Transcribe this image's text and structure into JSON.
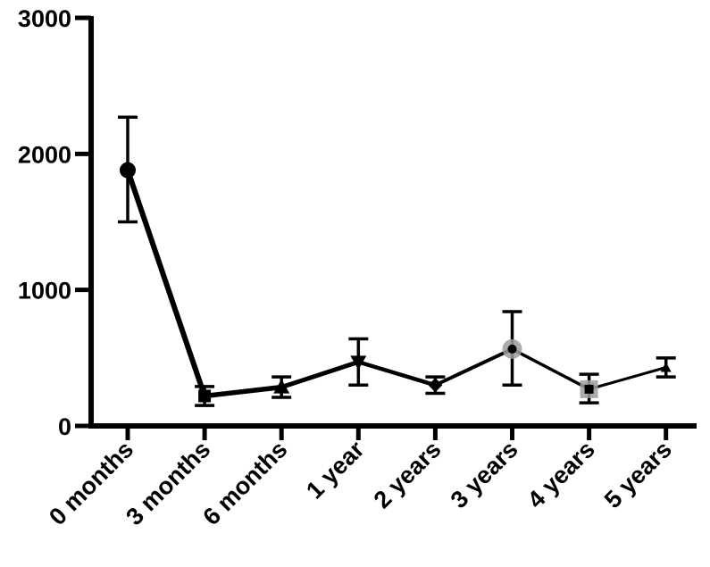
{
  "chart_data": {
    "type": "line",
    "categories": [
      "0 months",
      "3 months",
      "6 months",
      "1 year",
      "2 years",
      "3 years",
      "4 years",
      "5 years"
    ],
    "series": [
      {
        "values": [
          1880,
          220,
          285,
          470,
          300,
          565,
          270,
          430
        ],
        "error_low": [
          1500,
          150,
          210,
          300,
          240,
          300,
          170,
          360
        ],
        "error_high": [
          2270,
          290,
          360,
          640,
          360,
          840,
          380,
          500
        ],
        "markers": [
          "circle",
          "square",
          "triangle-up",
          "triangle-down",
          "diamond",
          "circle",
          "square",
          "triangle-up"
        ]
      }
    ],
    "yticks": [
      "0",
      "1000",
      "2000",
      "3000"
    ],
    "ylim": [
      0,
      3000
    ],
    "title": "",
    "xlabel": "",
    "ylabel": "",
    "grid": false,
    "colors": {
      "line": "#000000",
      "marker_highlight": "#9e9e9e"
    }
  }
}
